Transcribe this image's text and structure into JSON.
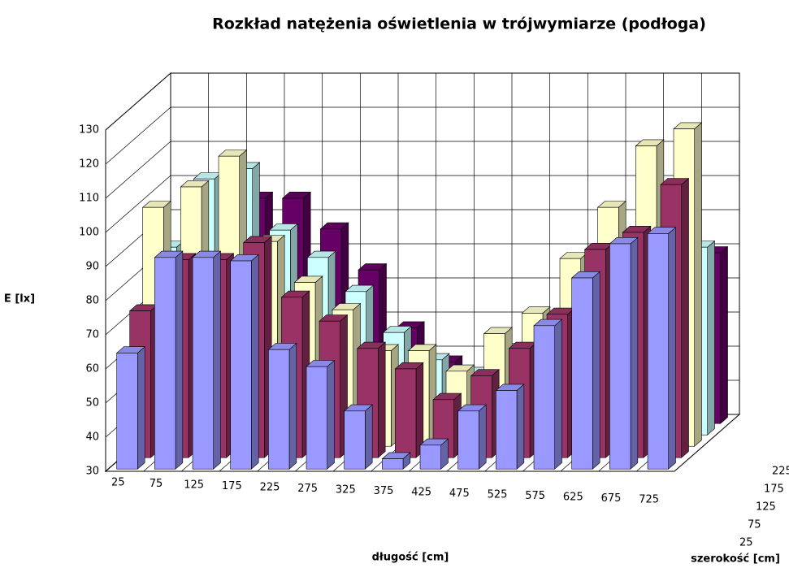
{
  "chart_data": {
    "type": "bar3d",
    "title": "Rozkład natężenia oświetlenia w trójwymiarze (podłoga)",
    "y_label": "E [lx]",
    "x_label": "długość [cm]",
    "z_label": "szerokość [cm]",
    "categories": [
      "25",
      "75",
      "125",
      "175",
      "225",
      "275",
      "325",
      "375",
      "425",
      "475",
      "525",
      "575",
      "625",
      "675",
      "725"
    ],
    "ylim": [
      30,
      130
    ],
    "yticks": [
      30,
      40,
      50,
      60,
      70,
      80,
      90,
      100,
      110,
      120,
      130
    ],
    "grid": true,
    "series": [
      {
        "name": "25",
        "color": "#9999ff",
        "values": [
          64,
          92,
          92,
          91,
          65,
          60,
          47,
          33,
          37,
          47,
          53,
          72,
          86,
          96,
          99
        ]
      },
      {
        "name": "75",
        "color": "#993366",
        "values": [
          73,
          88,
          88,
          93,
          77,
          70,
          62,
          56,
          47,
          54,
          62,
          72,
          91,
          96,
          110
        ]
      },
      {
        "name": "125",
        "color": "#ffffcc",
        "values": [
          100,
          106,
          115,
          90,
          78,
          70,
          58,
          58,
          52,
          63,
          69,
          85,
          100,
          118,
          123
        ]
      },
      {
        "name": "175",
        "color": "#ccffff",
        "values": [
          85,
          105,
          108,
          90,
          82,
          72,
          60,
          52,
          48,
          55,
          62,
          72,
          88,
          100,
          85
        ]
      },
      {
        "name": "225",
        "color": "#660066",
        "values": [
          80,
          92,
          96,
          96,
          87,
          75,
          58,
          48,
          44,
          50,
          58,
          70,
          82,
          92,
          80
        ]
      }
    ]
  }
}
